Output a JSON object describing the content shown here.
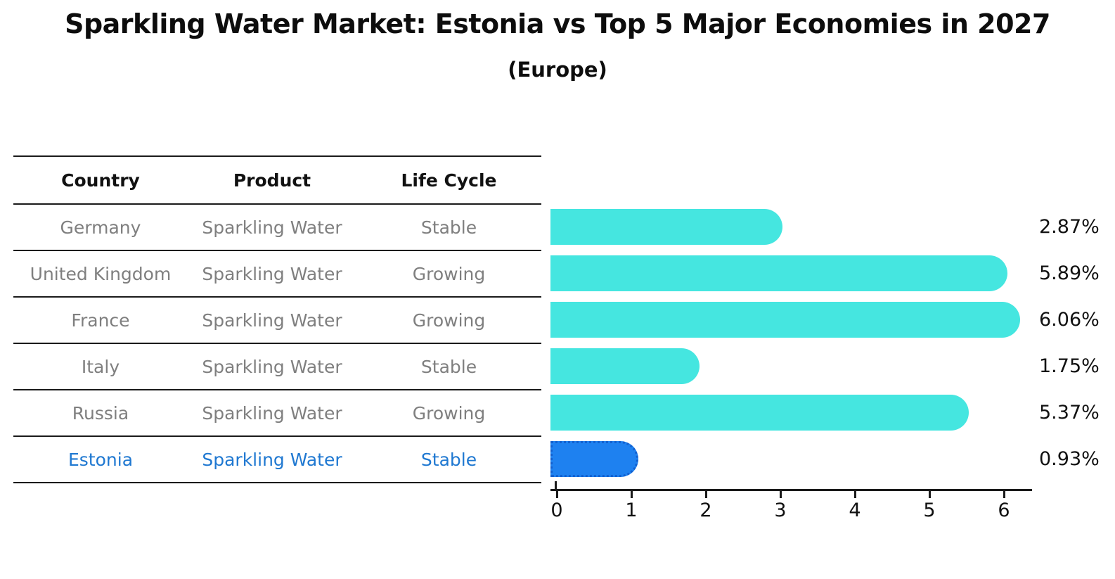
{
  "title": "Sparkling Water Market: Estonia vs Top 5 Major Economies in 2027",
  "subtitle": "(Europe)",
  "table": {
    "headers": [
      "Country",
      "Product",
      "Life Cycle"
    ],
    "rows": [
      {
        "country": "Germany",
        "product": "Sparkling Water",
        "life_cycle": "Stable"
      },
      {
        "country": "United Kingdom",
        "product": "Sparkling Water",
        "life_cycle": "Growing"
      },
      {
        "country": "France",
        "product": "Sparkling Water",
        "life_cycle": "Growing"
      },
      {
        "country": "Italy",
        "product": "Sparkling Water",
        "life_cycle": "Stable"
      },
      {
        "country": "Russia",
        "product": "Sparkling Water",
        "life_cycle": "Growing"
      },
      {
        "country": "Estonia",
        "product": "Sparkling Water",
        "life_cycle": "Stable"
      }
    ]
  },
  "chart_data": {
    "type": "bar",
    "orientation": "horizontal",
    "title": "Sparkling Water Market: Estonia vs Top 5 Major Economies in 2027 (Europe)",
    "categories": [
      "Germany",
      "United Kingdom",
      "France",
      "Italy",
      "Russia",
      "Estonia"
    ],
    "values": [
      2.87,
      5.89,
      6.06,
      1.75,
      5.37,
      0.93
    ],
    "labels": [
      "2.87%",
      "5.89%",
      "6.06%",
      "1.75%",
      "5.37%",
      "0.93%"
    ],
    "life_cycle": [
      "Stable",
      "Growing",
      "Growing",
      "Stable",
      "Growing",
      "Stable"
    ],
    "highlight_index": 5,
    "xlim": [
      0,
      6.4
    ],
    "xticks": [
      0,
      1,
      2,
      3,
      4,
      5,
      6
    ],
    "grid": false,
    "legend": false,
    "colors": {
      "bar": "#45e6e0",
      "highlight_bar": "#1e81f0",
      "highlight_border": "#1260cf",
      "highlight_text": "#1f78d1",
      "table_text": "#7f7f7f",
      "header_text": "#111111",
      "value_text": "#111111"
    }
  }
}
